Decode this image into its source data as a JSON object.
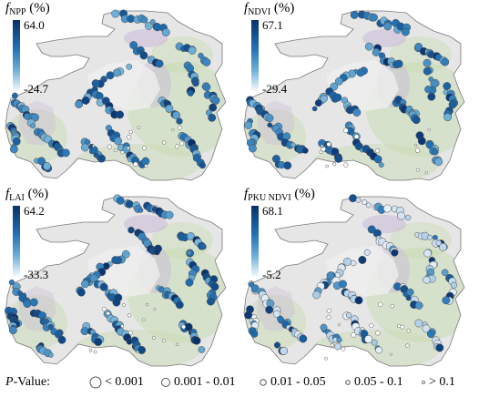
{
  "panels": [
    {
      "id": "npp",
      "var": "f",
      "sub": "NPP",
      "unit": " (%)",
      "max": "64.0",
      "min": "-24.7",
      "seed": 11,
      "pattern": "uniform"
    },
    {
      "id": "ndvi",
      "var": "f",
      "sub": "NDVI",
      "unit": " (%)",
      "max": "67.1",
      "min": "-29.4",
      "seed": 23,
      "pattern": "uniform"
    },
    {
      "id": "lai",
      "var": "f",
      "sub": "LAI",
      "unit": " (%)",
      "max": "64.2",
      "min": "-33.3",
      "seed": 37,
      "pattern": "uniform"
    },
    {
      "id": "pku",
      "var": "f",
      "sub": "PKU NDVI",
      "unit": " (%)",
      "max": "68.1",
      "min": "-5.2",
      "seed": 53,
      "pattern": "mixed"
    }
  ],
  "legend": {
    "label_italic": "P",
    "label_rest": "-Value:",
    "items": [
      "< 0.001",
      "0.001 - 0.01",
      "0.01 - 0.05",
      "0.05 - 0.1",
      "> 0.1"
    ]
  },
  "colors": {
    "colorbar_top": "#08306b",
    "colorbar_bottom": "#f7fbff",
    "region_fill": "#e6e6e6",
    "region_stroke": "#7a7a7a",
    "terrain_green": "#c9dcb4",
    "terrain_purple": "#c8b8d8"
  }
}
